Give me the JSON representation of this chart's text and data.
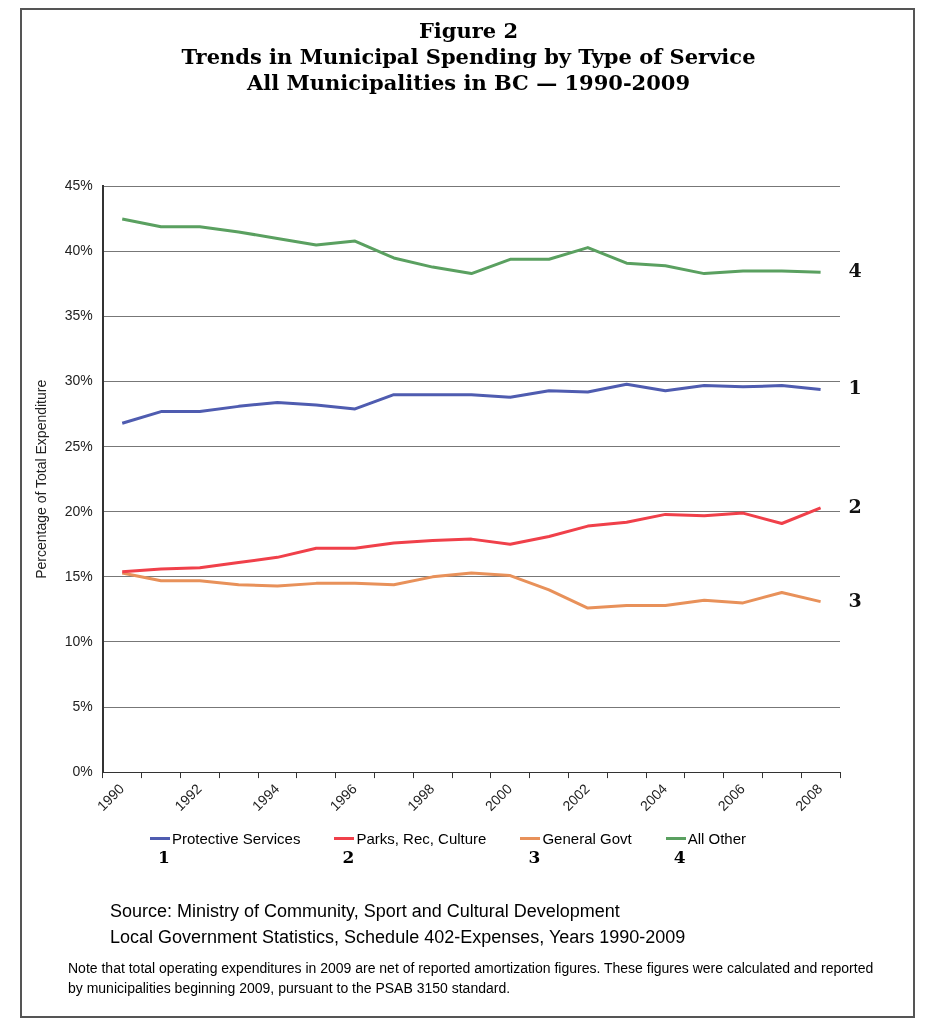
{
  "chart_data": {
    "type": "line",
    "title": "Figure 2\nTrends in Municipal Spending by Type of Service\nAll Municipalities in BC — 1990-2009",
    "ylabel": "Percentage of Total Expenditure",
    "categories": [
      "1990",
      null,
      "1992",
      null,
      "1994",
      null,
      "1996",
      null,
      "1998",
      null,
      "2000",
      null,
      "2002",
      null,
      "2004",
      null,
      "2006",
      null,
      "2008"
    ],
    "series": [
      {
        "name": "Protective Services",
        "color": "#4f5cb0",
        "values": [
          26.8,
          27.7,
          27.7,
          28.1,
          28.4,
          28.2,
          27.9,
          29.0,
          29.0,
          29.0,
          28.8,
          29.3,
          29.2,
          29.8,
          29.3,
          29.7,
          29.6,
          29.7,
          29.4
        ]
      },
      {
        "name": "Parks, Rec, Culture",
        "color": "#f0404a",
        "values": [
          15.4,
          15.6,
          15.7,
          16.1,
          16.5,
          17.2,
          17.2,
          17.6,
          17.8,
          17.9,
          17.5,
          18.1,
          18.9,
          19.2,
          19.8,
          19.7,
          19.9,
          19.1,
          20.3
        ]
      },
      {
        "name": "General Govt",
        "color": "#e8915a",
        "values": [
          15.3,
          14.7,
          14.7,
          14.4,
          14.3,
          14.5,
          14.5,
          14.4,
          15.0,
          15.3,
          15.1,
          14.0,
          12.6,
          12.8,
          12.8,
          13.2,
          13.0,
          13.8,
          13.1
        ]
      },
      {
        "name": "All Other",
        "color": "#5aa060",
        "values": [
          42.5,
          41.9,
          41.9,
          41.5,
          41.0,
          40.5,
          40.8,
          39.5,
          38.8,
          38.3,
          39.4,
          39.4,
          40.3,
          39.1,
          38.9,
          38.3,
          38.5,
          38.5,
          38.4
        ]
      }
    ],
    "ylim": [
      0,
      45
    ],
    "yticks": [
      {
        "value": 0,
        "label": "0%"
      },
      {
        "value": 5,
        "label": "5%"
      },
      {
        "value": 10,
        "label": "10%"
      },
      {
        "value": 15,
        "label": "15%"
      },
      {
        "value": 20,
        "label": "20%"
      },
      {
        "value": 25,
        "label": "25%"
      },
      {
        "value": 30,
        "label": "30%"
      },
      {
        "value": 35,
        "label": "35%"
      },
      {
        "value": 40,
        "label": "40%"
      },
      {
        "value": 45,
        "label": "45%"
      }
    ],
    "grid": "y",
    "legend": "bottom",
    "marker": "none",
    "line_style": "solid",
    "annotations": [
      {
        "text": "1",
        "x": "2008",
        "y": 29.4
      },
      {
        "text": "2",
        "x": "2008",
        "y": 20.3
      },
      {
        "text": "3",
        "x": "2008",
        "y": 13.1
      },
      {
        "text": "4",
        "x": "2008",
        "y": 38.4
      },
      "Source:  Ministry of Community, Sport and Cultural Development\nLocal Government Statistics, Schedule 402-Expenses, Years 1990-2009",
      "Note that total operating expenditures in 2009 are net of reported amortization figures. These figures were calculated and reported by municipalities beginning 2009, pursuant to the PSAB 3150 standard."
    ]
  }
}
